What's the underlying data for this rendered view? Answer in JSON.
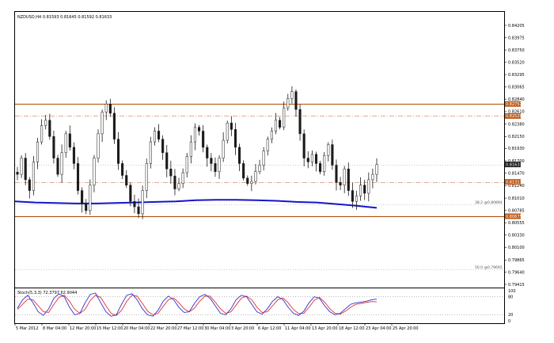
{
  "window": {
    "symbol_line": "NZDUSD,H4  0.81593 0.81645 0.81592 0.81633"
  },
  "indicator": {
    "label": "Stoch(5,3,3) 72.3797 62.9044",
    "levels": [
      "100",
      "80",
      "20",
      "0"
    ]
  },
  "fib_labels": [
    {
      "text": "38.2 @0.80894",
      "price": 0.80894
    },
    {
      "text": "50.0 @0.79695",
      "price": 0.79695
    }
  ],
  "colors": {
    "bull": "#1a1a1a",
    "bear": "#1a1a1a",
    "ma": "#1515c8",
    "resistance": "#b04a00",
    "dash": "#c06030",
    "grid": "#999999",
    "stoch_main": "#3030d0",
    "stoch_signal": "#e03030",
    "price_tag_orange": "#c05a1a",
    "price_tag_black": "#1a1a1a"
  },
  "chart_data": {
    "type": "candlestick",
    "instrument": "NZDUSD",
    "timeframe": "H4",
    "y_ticks": [
      0.84205,
      0.83975,
      0.8375,
      0.8352,
      0.83295,
      0.83065,
      0.8284,
      0.8261,
      0.8238,
      0.8215,
      0.8193,
      0.817,
      0.8147,
      0.8124,
      0.8101,
      0.80785,
      0.80555,
      0.8033,
      0.801,
      0.79865,
      0.7964,
      0.79415
    ],
    "y_range": [
      0.79415,
      0.84205
    ],
    "x_ticks": [
      "5 Mar 2012",
      "8 Mar 04:00",
      "12 Mar 20:00",
      "15 Mar 12:00",
      "20 Mar 04:00",
      "22 Mar 20:00",
      "27 Mar 12:00",
      "30 Mar 04:00",
      "3 Apr 20:00",
      "6 Apr 12:00",
      "11 Apr 04:00",
      "13 Apr 20:00",
      "18 Apr 12:00",
      "23 Apr 04:00",
      "25 Apr 20:00"
    ],
    "price_tags": [
      {
        "price": 0.82751,
        "style": "orange"
      },
      {
        "price": 0.82529,
        "style": "orange"
      },
      {
        "price": 0.81633,
        "style": "black"
      },
      {
        "price": 0.81311,
        "style": "orange"
      },
      {
        "price": 0.80675,
        "style": "orange"
      }
    ],
    "horizontal_lines": [
      {
        "price": 0.82751,
        "style": "solid",
        "color": "resistance"
      },
      {
        "price": 0.82529,
        "style": "dashdot",
        "color": "dash"
      },
      {
        "price": 0.81633,
        "style": "dotted",
        "color": "grid"
      },
      {
        "price": 0.81311,
        "style": "dashdot",
        "color": "dash"
      },
      {
        "price": 0.80894,
        "style": "dotted",
        "color": "grid"
      },
      {
        "price": 0.80675,
        "style": "solid",
        "color": "resistance"
      },
      {
        "price": 0.79695,
        "style": "dotted",
        "color": "grid"
      }
    ],
    "close_path": [
      0.8145,
      0.8175,
      0.8135,
      0.8115,
      0.8168,
      0.8205,
      0.8235,
      0.8245,
      0.8215,
      0.8175,
      0.8145,
      0.8185,
      0.822,
      0.8195,
      0.8165,
      0.8115,
      0.809,
      0.8078,
      0.8125,
      0.8175,
      0.822,
      0.826,
      0.8275,
      0.8258,
      0.821,
      0.8165,
      0.8143,
      0.8125,
      0.8095,
      0.8085,
      0.8072,
      0.8115,
      0.8165,
      0.8205,
      0.8225,
      0.821,
      0.8185,
      0.8155,
      0.8142,
      0.8118,
      0.8128,
      0.8148,
      0.8178,
      0.8205,
      0.8232,
      0.8225,
      0.8195,
      0.8175,
      0.8165,
      0.815,
      0.8175,
      0.8208,
      0.824,
      0.8228,
      0.8195,
      0.8165,
      0.8138,
      0.8128,
      0.8132,
      0.815,
      0.8162,
      0.8188,
      0.821,
      0.8225,
      0.8245,
      0.8232,
      0.8268,
      0.8285,
      0.8298,
      0.8265,
      0.822,
      0.8175,
      0.8168,
      0.8182,
      0.8165,
      0.815,
      0.818,
      0.82,
      0.8162,
      0.813,
      0.8125,
      0.8155,
      0.8115,
      0.8095,
      0.8105,
      0.8125,
      0.811,
      0.8135,
      0.8145,
      0.8163
    ],
    "moving_average": [
      0.8095,
      0.8093,
      0.8092,
      0.8091,
      0.8091,
      0.8092,
      0.8093,
      0.8094,
      0.8095,
      0.8097,
      0.8098,
      0.8098,
      0.8097,
      0.8096,
      0.8094,
      0.8093,
      0.809,
      0.8087,
      0.8083
    ],
    "stochastic": {
      "main": [
        42,
        70,
        85,
        60,
        30,
        18,
        40,
        75,
        90,
        80,
        45,
        20,
        25,
        60,
        88,
        92,
        60,
        30,
        15,
        20,
        55,
        85,
        90,
        70,
        40,
        20,
        15,
        35,
        65,
        82,
        70,
        45,
        28,
        30,
        58,
        80,
        88,
        75,
        50,
        25,
        20,
        40,
        70,
        85,
        80,
        55,
        30,
        22,
        40,
        65,
        80,
        70,
        45,
        25,
        18,
        32,
        60,
        80,
        75,
        50,
        30,
        20,
        25,
        40,
        55,
        60,
        62,
        65,
        70,
        72
      ],
      "signal": [
        38,
        55,
        72,
        70,
        50,
        30,
        28,
        55,
        78,
        85,
        65,
        38,
        25,
        38,
        68,
        85,
        78,
        50,
        25,
        18,
        35,
        65,
        85,
        82,
        58,
        32,
        20,
        25,
        48,
        70,
        76,
        60,
        40,
        30,
        42,
        65,
        82,
        82,
        62,
        40,
        25,
        30,
        52,
        75,
        82,
        70,
        45,
        28,
        30,
        50,
        70,
        76,
        60,
        38,
        24,
        25,
        45,
        68,
        78,
        62,
        40,
        25,
        22,
        32,
        45,
        55,
        58,
        61,
        64,
        63
      ]
    }
  }
}
